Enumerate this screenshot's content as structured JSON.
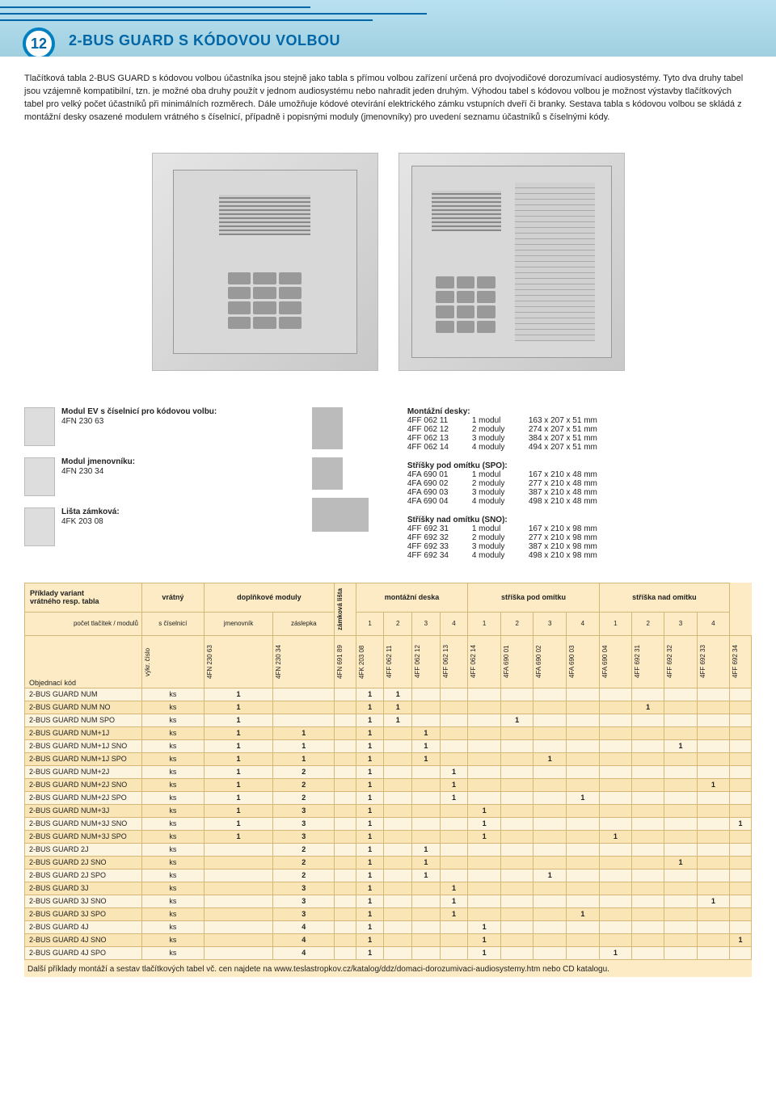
{
  "header": {
    "badge": "12",
    "title": "2-BUS GUARD S KÓDOVOU VOLBOU"
  },
  "intro": "Tlačítková tabla 2-BUS GUARD s kódovou volbou účastníka jsou stejně jako tabla s přímou volbou zařízení určená pro dvojvodičové dorozumívací audiosystémy. Tyto dva druhy tabel jsou vzájemně kompatibilní, tzn. je možné oba druhy použít v jednom audiosystému nebo nahradit jeden druhým. Výhodou tabel s kódovou volbou je možnost výstavby tlačítkových tabel pro velký počet účastníků při minimálních rozměrech. Dále umožňuje kódové otevírání elektrického zámku vstupních dveří či branky.\nSestava tabla s kódovou volbou se skládá z montážní desky osazené modulem vrátného s číselnicí, případně i popisnými moduly (jmenovníky) pro uvedení seznamu účastníků s číselnými kódy.",
  "leftAccessories": [
    {
      "title": "Modul EV s číselnicí pro kódovou volbu:",
      "sub": "4FN 230 63"
    },
    {
      "title": "Modul jmenovníku:",
      "sub": "4FN 230 34"
    },
    {
      "title": "Lišta zámková:",
      "sub": "4FK 203 08"
    }
  ],
  "rightAccessories": [
    {
      "title": "Montážní desky:",
      "rows": [
        [
          "4FF 062 11",
          "1 modul",
          "163 x 207 x 51 mm"
        ],
        [
          "4FF 062 12",
          "2 moduly",
          "274 x 207 x 51 mm"
        ],
        [
          "4FF 062 13",
          "3 moduly",
          "384 x 207 x 51 mm"
        ],
        [
          "4FF 062 14",
          "4 moduly",
          "494 x 207 x 51 mm"
        ]
      ]
    },
    {
      "title": "Stříšky pod omítku (SPO):",
      "rows": [
        [
          "4FA 690 01",
          "1 modul",
          "167 x 210 x 48 mm"
        ],
        [
          "4FA 690 02",
          "2 moduly",
          "277 x 210 x 48 mm"
        ],
        [
          "4FA 690 03",
          "3 moduly",
          "387 x 210 x 48 mm"
        ],
        [
          "4FA 690 04",
          "4 moduly",
          "498 x 210 x 48 mm"
        ]
      ]
    },
    {
      "title": "Stříšky nad omítku (SNO):",
      "rows": [
        [
          "4FF 692 31",
          "1 modul",
          "167 x 210 x 98 mm"
        ],
        [
          "4FF 692 32",
          "2 moduly",
          "277 x 210 x 98 mm"
        ],
        [
          "4FF 692 33",
          "3 moduly",
          "387 x 210 x 98 mm"
        ],
        [
          "4FF 692 34",
          "4 moduly",
          "498 x 210 x 98 mm"
        ]
      ]
    }
  ],
  "orderTable": {
    "groupHeaders": [
      "Příklady variant\nvrátného resp. tabla",
      "vrátný",
      "doplňkové moduly",
      "zámková lišta",
      "montážní deska",
      "stříška pod omítku",
      "stříška nad omítku"
    ],
    "subHeaders": [
      "počet tlačítek / modulů",
      "s číselnicí",
      "jmenovník",
      "záslepka",
      "",
      "1",
      "2",
      "3",
      "4",
      "1",
      "2",
      "3",
      "4",
      "1",
      "2",
      "3",
      "4"
    ],
    "bottomLabel": "Objednací kód",
    "vertical": [
      "výkr. číslo",
      "4FN 230 63",
      "4FN 230 34",
      "4FN 691 89",
      "4FK 203 08",
      "4FF 062 11",
      "4FF 062 12",
      "4FF 062 13",
      "4FF 062 14",
      "4FA 690 01",
      "4FA 690 02",
      "4FA 690 03",
      "4FA 690 04",
      "4FF 692 31",
      "4FF 692 32",
      "4FF 692 33",
      "4FF 692 34"
    ],
    "rows": [
      [
        "2-BUS GUARD NUM",
        "ks",
        "1",
        "",
        "",
        "1",
        "1",
        "",
        "",
        "",
        "",
        "",
        "",
        "",
        "",
        "",
        "",
        ""
      ],
      [
        "2-BUS GUARD NUM NO",
        "ks",
        "1",
        "",
        "",
        "1",
        "1",
        "",
        "",
        "",
        "",
        "",
        "",
        "",
        "1",
        "",
        "",
        ""
      ],
      [
        "2-BUS GUARD NUM SPO",
        "ks",
        "1",
        "",
        "",
        "1",
        "1",
        "",
        "",
        "",
        "1",
        "",
        "",
        "",
        "",
        "",
        "",
        ""
      ],
      [
        "2-BUS GUARD NUM+1J",
        "ks",
        "1",
        "1",
        "",
        "1",
        "",
        "1",
        "",
        "",
        "",
        "",
        "",
        "",
        "",
        "",
        "",
        ""
      ],
      [
        "2-BUS GUARD NUM+1J SNO",
        "ks",
        "1",
        "1",
        "",
        "1",
        "",
        "1",
        "",
        "",
        "",
        "",
        "",
        "",
        "",
        "1",
        "",
        ""
      ],
      [
        "2-BUS GUARD NUM+1J SPO",
        "ks",
        "1",
        "1",
        "",
        "1",
        "",
        "1",
        "",
        "",
        "",
        "1",
        "",
        "",
        "",
        "",
        "",
        ""
      ],
      [
        "2-BUS GUARD NUM+2J",
        "ks",
        "1",
        "2",
        "",
        "1",
        "",
        "",
        "1",
        "",
        "",
        "",
        "",
        "",
        "",
        "",
        "",
        ""
      ],
      [
        "2-BUS GUARD NUM+2J SNO",
        "ks",
        "1",
        "2",
        "",
        "1",
        "",
        "",
        "1",
        "",
        "",
        "",
        "",
        "",
        "",
        "",
        "1",
        ""
      ],
      [
        "2-BUS GUARD NUM+2J SPO",
        "ks",
        "1",
        "2",
        "",
        "1",
        "",
        "",
        "1",
        "",
        "",
        "",
        "1",
        "",
        "",
        "",
        "",
        ""
      ],
      [
        "2-BUS GUARD NUM+3J",
        "ks",
        "1",
        "3",
        "",
        "1",
        "",
        "",
        "",
        "1",
        "",
        "",
        "",
        "",
        "",
        "",
        "",
        ""
      ],
      [
        "2-BUS GUARD NUM+3J SNO",
        "ks",
        "1",
        "3",
        "",
        "1",
        "",
        "",
        "",
        "1",
        "",
        "",
        "",
        "",
        "",
        "",
        "",
        "1"
      ],
      [
        "2-BUS GUARD NUM+3J SPO",
        "ks",
        "1",
        "3",
        "",
        "1",
        "",
        "",
        "",
        "1",
        "",
        "",
        "",
        "1",
        "",
        "",
        "",
        ""
      ],
      [
        "2-BUS GUARD 2J",
        "ks",
        "",
        "2",
        "",
        "1",
        "",
        "1",
        "",
        "",
        "",
        "",
        "",
        "",
        "",
        "",
        "",
        ""
      ],
      [
        "2-BUS GUARD 2J SNO",
        "ks",
        "",
        "2",
        "",
        "1",
        "",
        "1",
        "",
        "",
        "",
        "",
        "",
        "",
        "",
        "1",
        "",
        ""
      ],
      [
        "2-BUS GUARD 2J SPO",
        "ks",
        "",
        "2",
        "",
        "1",
        "",
        "1",
        "",
        "",
        "",
        "1",
        "",
        "",
        "",
        "",
        "",
        ""
      ],
      [
        "2-BUS GUARD 3J",
        "ks",
        "",
        "3",
        "",
        "1",
        "",
        "",
        "1",
        "",
        "",
        "",
        "",
        "",
        "",
        "",
        "",
        ""
      ],
      [
        "2-BUS GUARD 3J SNO",
        "ks",
        "",
        "3",
        "",
        "1",
        "",
        "",
        "1",
        "",
        "",
        "",
        "",
        "",
        "",
        "",
        "1",
        ""
      ],
      [
        "2-BUS GUARD 3J SPO",
        "ks",
        "",
        "3",
        "",
        "1",
        "",
        "",
        "1",
        "",
        "",
        "",
        "1",
        "",
        "",
        "",
        "",
        ""
      ],
      [
        "2-BUS GUARD 4J",
        "ks",
        "",
        "4",
        "",
        "1",
        "",
        "",
        "",
        "1",
        "",
        "",
        "",
        "",
        "",
        "",
        "",
        ""
      ],
      [
        "2-BUS GUARD 4J SNO",
        "ks",
        "",
        "4",
        "",
        "1",
        "",
        "",
        "",
        "1",
        "",
        "",
        "",
        "",
        "",
        "",
        "",
        "1"
      ],
      [
        "2-BUS GUARD 4J SPO",
        "ks",
        "",
        "4",
        "",
        "1",
        "",
        "",
        "",
        "1",
        "",
        "",
        "",
        "1",
        "",
        "",
        "",
        ""
      ]
    ]
  },
  "footnote": "Další příklady montáží a sestav tlačítkových tabel vč. cen najdete na www.teslastropkov.cz/katalog/ddz/domaci-dorozumivaci-audiosystemy.htm nebo CD katalogu."
}
